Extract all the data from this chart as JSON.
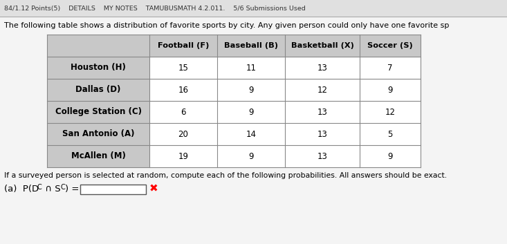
{
  "header_text": "The following table shows a distribution of favorite sports by city. Any given person could only have one favorite sp",
  "top_bar_text": "84/1.12 Points(5)    DETAILS    MY NOTES    TAMUBUSMATH 4.2.011.    5/6 Submissions Used",
  "col_headers": [
    "",
    "Football (F)",
    "Baseball (B)",
    "Basketball (X)",
    "Soccer (S)"
  ],
  "rows": [
    [
      "Houston (H)",
      "15",
      "11",
      "13",
      "7"
    ],
    [
      "Dallas (D)",
      "16",
      "9",
      "12",
      "9"
    ],
    [
      "College Station (C)",
      "6",
      "9",
      "13",
      "12"
    ],
    [
      "San Antonio (A)",
      "20",
      "14",
      "13",
      "5"
    ],
    [
      "McAllen (M)",
      "19",
      "9",
      "13",
      "9"
    ]
  ],
  "footer_text": "If a surveyed person is selected at random, compute each of the following probabilities. All answers should be exact.",
  "question_label": "(a)  P(D",
  "question_sup1": "C",
  "question_mid": " ∩ S",
  "question_sup2": "C",
  "question_end": ") =",
  "header_bg": "#c8c8c8",
  "cell_bg": "#ffffff",
  "border_color": "#888888",
  "text_color": "#000000",
  "top_bar_bg": "#e0e0e0",
  "fig_bg": "#f4f4f4"
}
